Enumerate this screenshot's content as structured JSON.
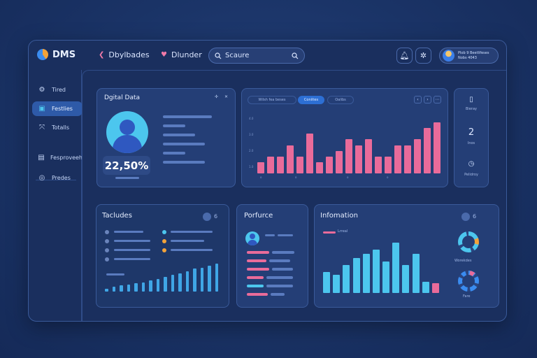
{
  "app": {
    "name": "DMS",
    "nav": [
      {
        "label": "Dbylbades",
        "icon": "chevron-left-icon"
      },
      {
        "label": "Dlunder",
        "icon": "heart-icon"
      }
    ],
    "search_placeholder": "Scaure",
    "user": {
      "line1": "Plob 9 Beetlifeses",
      "line2": "Nobs 4043"
    }
  },
  "sidebar": {
    "items": [
      {
        "label": "Tired",
        "icon": "gear-icon",
        "active": false
      },
      {
        "label": "Festlies",
        "icon": "layers-icon",
        "active": true
      },
      {
        "label": "Totalls",
        "icon": "expand-icon",
        "active": false
      },
      {
        "label": "Fesproveeh",
        "icon": "clipboard-icon",
        "active": false
      },
      {
        "label": "Predes",
        "icon": "globe-icon",
        "active": false
      }
    ]
  },
  "digital_card": {
    "title": "Dgital Data",
    "value": "22,50%"
  },
  "top_chart": {
    "chips": [
      "Wilsh fea beses",
      "Coniites",
      "Oalibs"
    ],
    "y_ticks": [
      "4.0",
      "3.0",
      "2.0",
      "1.0"
    ],
    "x_ticks": [
      "o",
      "o",
      "o",
      "o"
    ],
    "chart_data": {
      "type": "bar",
      "values": [
        2,
        3,
        3,
        5,
        3,
        7,
        2,
        3,
        4,
        6,
        5,
        6,
        3,
        3,
        5,
        5,
        6,
        8,
        9
      ]
    }
  },
  "side_stats": {
    "items": [
      {
        "label": "Bieray",
        "icon": "clipboard-icon",
        "value": ""
      },
      {
        "label": "Inos",
        "icon": "",
        "value": "2"
      },
      {
        "label": "Pelidroy",
        "icon": "compass-icon",
        "value": ""
      }
    ]
  },
  "tacludes": {
    "title": "Tacludes",
    "toggle": "• 6"
  },
  "porfurce": {
    "title": "Porfurce"
  },
  "infomation": {
    "title": "Infomation",
    "toggle": "• 6",
    "legend": "Lrreal",
    "ring1_label": "Worekdes",
    "ring2_label": "Fare"
  },
  "colors": {
    "accent_blue": "#2d6fd4",
    "bar_pink": "#e96b9a",
    "bar_cyan": "#4cc6ee",
    "page_bg": "#1a3366"
  }
}
